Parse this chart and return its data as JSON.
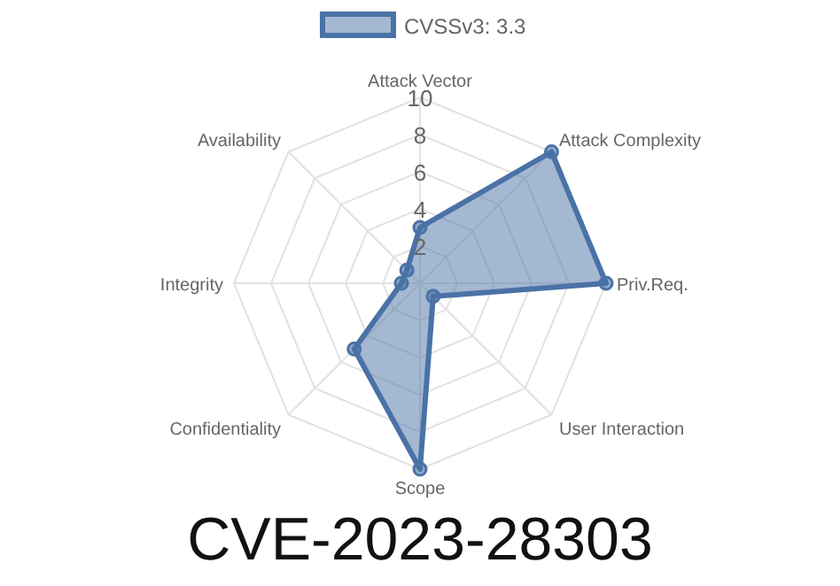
{
  "chart_data": {
    "type": "radar",
    "title": "CVE-2023-28303",
    "categories": [
      "Attack Vector",
      "Attack Complexity",
      "Priv.Req.",
      "User Interaction",
      "Scope",
      "Confidentiality",
      "Integrity",
      "Availability"
    ],
    "series": [
      {
        "name": "CVSSv3: 3.3",
        "color": "#4a72a6",
        "values": [
          3,
          10,
          10,
          1,
          10,
          5,
          1,
          1
        ]
      }
    ],
    "ylim": [
      0,
      10
    ],
    "yticks": [
      2,
      4,
      6,
      8,
      10
    ],
    "grid": true,
    "legend": "top",
    "marker": "circle"
  }
}
